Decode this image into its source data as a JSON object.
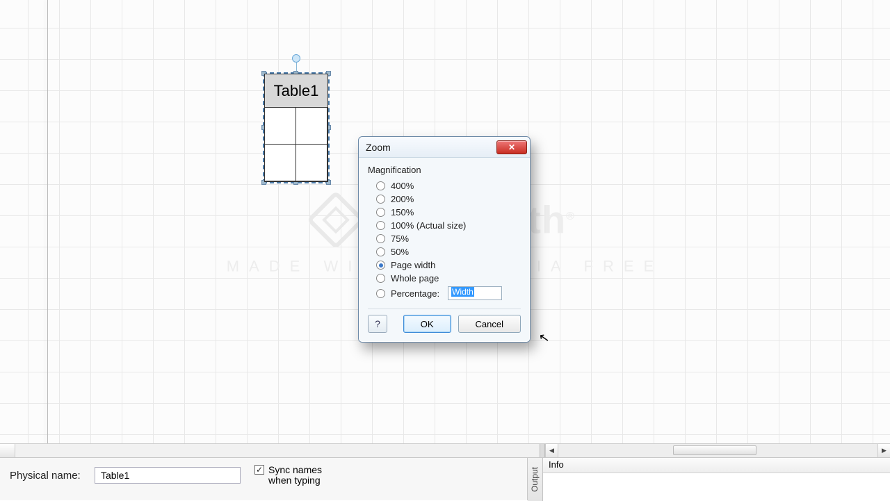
{
  "canvas": {
    "table": {
      "title": "Table1"
    }
  },
  "watermark": {
    "brand": "TechSmith",
    "subtitle": "MADE WITH CAMTASIA FREE TRIAL"
  },
  "dialog": {
    "title": "Zoom",
    "group": "Magnification",
    "options": {
      "p400": "400%",
      "p200": "200%",
      "p150": "150%",
      "p100": "100% (Actual size)",
      "p75": "75%",
      "p50": "50%",
      "pagewidth": "Page width",
      "wholepage": "Whole page",
      "percentage": "Percentage:"
    },
    "selected": "pagewidth",
    "pct_value": "Width",
    "ok": "OK",
    "cancel": "Cancel"
  },
  "props": {
    "physical_name_label": "Physical name:",
    "physical_name_value": "Table1",
    "sync_label_1": "Sync names",
    "sync_label_2": "when typing",
    "sync_checked": true
  },
  "output": {
    "tab": "Output",
    "header": "Info"
  }
}
